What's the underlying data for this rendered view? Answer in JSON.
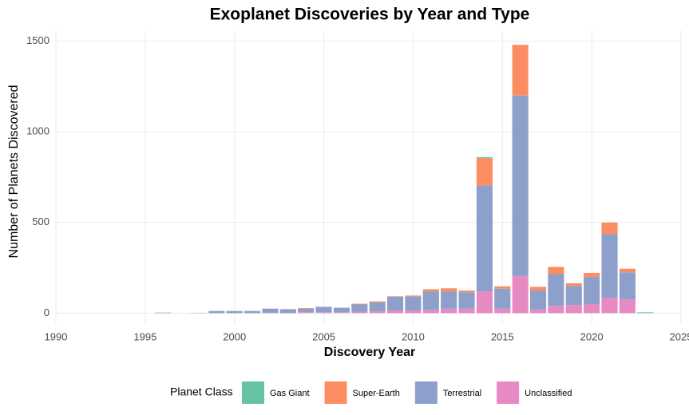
{
  "chart_data": {
    "type": "bar",
    "stacked": true,
    "title": "Exoplanet Discoveries by Year and Type",
    "x_label": "Discovery Year",
    "y_label": "Number of Planets Discovered",
    "legend_title": "Planet Class",
    "legend_position": "bottom",
    "grid": true,
    "x": [
      1996,
      1998,
      1999,
      2000,
      2001,
      2002,
      2003,
      2004,
      2005,
      2006,
      2007,
      2008,
      2009,
      2010,
      2011,
      2012,
      2013,
      2014,
      2015,
      2016,
      2017,
      2018,
      2019,
      2020,
      2021,
      2022,
      2023
    ],
    "series": [
      {
        "name": "Gas Giant",
        "color": "#66c2a5",
        "values": [
          0,
          0,
          0,
          0,
          0,
          0,
          0,
          0,
          0,
          0,
          0,
          0,
          0,
          0,
          0,
          0,
          0,
          5,
          0,
          0,
          0,
          0,
          0,
          0,
          0,
          0,
          2
        ]
      },
      {
        "name": "Super-Earth",
        "color": "#fc8d62",
        "values": [
          0,
          0,
          0,
          0,
          0,
          0,
          0,
          3,
          0,
          0,
          4,
          5,
          3,
          4,
          12,
          17,
          10,
          150,
          13,
          280,
          20,
          40,
          15,
          22,
          65,
          20,
          0
        ]
      },
      {
        "name": "Terrestrial",
        "color": "#8da0cb",
        "values": [
          3,
          2,
          12,
          12,
          12,
          23,
          22,
          20,
          30,
          25,
          40,
          50,
          75,
          78,
          102,
          95,
          90,
          585,
          110,
          995,
          105,
          175,
          105,
          150,
          350,
          150,
          3
        ]
      },
      {
        "name": "Unclassified",
        "color": "#e78ac3",
        "values": [
          0,
          0,
          0,
          0,
          0,
          2,
          0,
          5,
          5,
          5,
          8,
          10,
          15,
          15,
          18,
          25,
          25,
          120,
          25,
          205,
          20,
          40,
          45,
          50,
          85,
          75,
          0
        ]
      }
    ],
    "xlim": [
      1990,
      2025
    ],
    "xticks": [
      1990,
      1995,
      2000,
      2005,
      2010,
      2015,
      2020,
      2025
    ],
    "ylim": [
      -60,
      1560
    ],
    "yticks": [
      0,
      500,
      1000,
      1500
    ]
  }
}
